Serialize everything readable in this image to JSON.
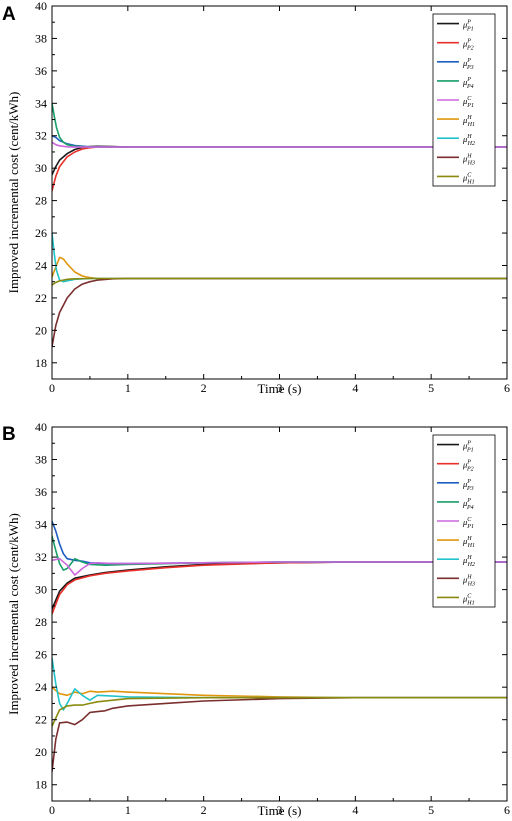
{
  "chart_data": [
    {
      "panel": "A",
      "type": "line",
      "xlabel": "Time (s)",
      "ylabel": "Improved incremental cost (cent/kWh)",
      "xlim": [
        0,
        6
      ],
      "ylim": [
        17,
        40
      ],
      "xticks": [
        0,
        1,
        2,
        3,
        4,
        5,
        6
      ],
      "yticks": [
        18,
        20,
        22,
        24,
        26,
        28,
        30,
        32,
        34,
        36,
        38,
        40
      ],
      "grid": false,
      "legend": "top-right",
      "series": [
        {
          "name": "μP1",
          "base": "μ",
          "sup": "P",
          "sub": "P1",
          "color": "#1a1a1a",
          "x": [
            0,
            0.05,
            0.1,
            0.2,
            0.3,
            0.4,
            0.5,
            0.6,
            0.8,
            1,
            2,
            4,
            6
          ],
          "y": [
            29.6,
            30.1,
            30.5,
            30.9,
            31.15,
            31.28,
            31.33,
            31.35,
            31.33,
            31.3,
            31.3,
            31.3,
            31.3
          ]
        },
        {
          "name": "μP2",
          "base": "μ",
          "sup": "P",
          "sub": "P2",
          "color": "#e8302a",
          "x": [
            0,
            0.05,
            0.1,
            0.2,
            0.3,
            0.4,
            0.5,
            0.6,
            0.8,
            1,
            2,
            4,
            6
          ],
          "y": [
            28.6,
            29.5,
            30.1,
            30.7,
            31.0,
            31.18,
            31.26,
            31.3,
            31.3,
            31.3,
            31.3,
            31.3,
            31.3
          ]
        },
        {
          "name": "μP3",
          "base": "μ",
          "sup": "P",
          "sub": "P3",
          "color": "#1f5fc2",
          "x": [
            0,
            0.05,
            0.1,
            0.2,
            0.3,
            0.5,
            0.8,
            1,
            2,
            4,
            6
          ],
          "y": [
            32.0,
            31.9,
            31.7,
            31.5,
            31.4,
            31.32,
            31.3,
            31.3,
            31.3,
            31.3,
            31.3
          ]
        },
        {
          "name": "μP4",
          "base": "μ",
          "sup": "P",
          "sub": "P4",
          "color": "#1a9e6a",
          "x": [
            0,
            0.03,
            0.06,
            0.1,
            0.15,
            0.2,
            0.3,
            0.5,
            0.8,
            1,
            2,
            4,
            6
          ],
          "y": [
            34.0,
            33.2,
            32.5,
            31.9,
            31.6,
            31.45,
            31.35,
            31.3,
            31.3,
            31.3,
            31.3,
            31.3,
            31.3
          ]
        },
        {
          "name": "μC1",
          "base": "μ",
          "sup": "C",
          "sub": "P1",
          "color": "#cc66dd",
          "x": [
            0,
            0.05,
            0.1,
            0.2,
            0.3,
            0.5,
            0.8,
            1,
            2,
            4,
            6
          ],
          "y": [
            31.6,
            31.45,
            31.38,
            31.32,
            31.3,
            31.3,
            31.3,
            31.3,
            31.3,
            31.3,
            31.3
          ]
        },
        {
          "name": "μH1",
          "base": "μ",
          "sup": "H",
          "sub": "H1",
          "color": "#e0960f",
          "x": [
            0,
            0.05,
            0.1,
            0.15,
            0.2,
            0.3,
            0.4,
            0.5,
            0.6,
            0.8,
            1,
            2,
            4,
            6
          ],
          "y": [
            23.3,
            23.9,
            24.5,
            24.4,
            24.1,
            23.6,
            23.35,
            23.25,
            23.2,
            23.2,
            23.2,
            23.2,
            23.2,
            23.2
          ]
        },
        {
          "name": "μH2",
          "base": "μ",
          "sup": "H",
          "sub": "H2",
          "color": "#22c4cc",
          "x": [
            0,
            0.03,
            0.06,
            0.1,
            0.15,
            0.2,
            0.3,
            0.5,
            0.8,
            1,
            2,
            4,
            6
          ],
          "y": [
            26.0,
            24.7,
            23.7,
            23.1,
            23.0,
            23.05,
            23.15,
            23.2,
            23.2,
            23.2,
            23.2,
            23.2,
            23.2
          ]
        },
        {
          "name": "μH3",
          "base": "μ",
          "sup": "H",
          "sub": "H3",
          "color": "#7a2e2e",
          "x": [
            0,
            0.05,
            0.1,
            0.2,
            0.3,
            0.4,
            0.5,
            0.6,
            0.8,
            1,
            2,
            4,
            6
          ],
          "y": [
            19.0,
            20.3,
            21.1,
            22.0,
            22.55,
            22.85,
            23.0,
            23.1,
            23.18,
            23.2,
            23.2,
            23.2,
            23.2
          ]
        },
        {
          "name": "μC1H",
          "base": "μ",
          "sup": "C",
          "sub": "H1",
          "color": "#8a8a10",
          "x": [
            0,
            0.05,
            0.1,
            0.2,
            0.3,
            0.5,
            0.8,
            1,
            2,
            4,
            6
          ],
          "y": [
            22.8,
            22.95,
            23.05,
            23.15,
            23.18,
            23.2,
            23.2,
            23.2,
            23.2,
            23.2,
            23.2
          ]
        }
      ]
    },
    {
      "panel": "B",
      "type": "line",
      "xlabel": "Time (s)",
      "ylabel": "Improved incremental cost (cent/kWh)",
      "xlim": [
        0,
        6
      ],
      "ylim": [
        17,
        40
      ],
      "xticks": [
        0,
        1,
        2,
        3,
        4,
        5,
        6
      ],
      "yticks": [
        18,
        20,
        22,
        24,
        26,
        28,
        30,
        32,
        34,
        36,
        38,
        40
      ],
      "grid": false,
      "legend": "top-right",
      "series": [
        {
          "name": "μP1",
          "base": "μ",
          "sup": "P",
          "sub": "P1",
          "color": "#1a1a1a",
          "x": [
            0,
            0.1,
            0.2,
            0.3,
            0.5,
            0.7,
            1,
            1.5,
            2,
            3,
            4,
            5,
            6
          ],
          "y": [
            28.8,
            29.9,
            30.4,
            30.7,
            30.9,
            31.05,
            31.2,
            31.4,
            31.55,
            31.65,
            31.7,
            31.7,
            31.7
          ]
        },
        {
          "name": "μP2",
          "base": "μ",
          "sup": "P",
          "sub": "P2",
          "color": "#e8302a",
          "x": [
            0,
            0.1,
            0.2,
            0.3,
            0.5,
            0.7,
            1,
            1.5,
            2,
            3,
            4,
            5,
            6
          ],
          "y": [
            28.5,
            29.7,
            30.3,
            30.6,
            30.85,
            31.0,
            31.15,
            31.35,
            31.5,
            31.65,
            31.7,
            31.7,
            31.7
          ]
        },
        {
          "name": "μP3",
          "base": "μ",
          "sup": "P",
          "sub": "P3",
          "color": "#1f5fc2",
          "x": [
            0,
            0.05,
            0.1,
            0.15,
            0.2,
            0.3,
            0.4,
            0.5,
            0.7,
            1,
            2,
            3,
            6
          ],
          "y": [
            34.2,
            33.6,
            32.8,
            32.2,
            31.9,
            31.8,
            31.75,
            31.65,
            31.6,
            31.6,
            31.65,
            31.7,
            31.7
          ]
        },
        {
          "name": "μP4",
          "base": "μ",
          "sup": "P",
          "sub": "P4",
          "color": "#1a9e6a",
          "x": [
            0,
            0.05,
            0.1,
            0.15,
            0.2,
            0.3,
            0.4,
            0.5,
            0.7,
            1,
            2,
            3,
            6
          ],
          "y": [
            33.3,
            32.4,
            31.6,
            31.2,
            31.3,
            31.9,
            31.7,
            31.55,
            31.5,
            31.55,
            31.65,
            31.7,
            31.7
          ]
        },
        {
          "name": "μC1",
          "base": "μ",
          "sup": "C",
          "sub": "P1",
          "color": "#cc66dd",
          "x": [
            0,
            0.1,
            0.2,
            0.3,
            0.4,
            0.5,
            0.6,
            0.8,
            1,
            2,
            3,
            6
          ],
          "y": [
            31.8,
            31.9,
            31.5,
            30.9,
            31.3,
            31.6,
            31.65,
            31.6,
            31.6,
            31.65,
            31.7,
            31.7
          ]
        },
        {
          "name": "μH1",
          "base": "μ",
          "sup": "H",
          "sub": "H1",
          "color": "#e0960f",
          "x": [
            0,
            0.1,
            0.2,
            0.3,
            0.4,
            0.5,
            0.6,
            0.8,
            1,
            1.5,
            2,
            3,
            4,
            6
          ],
          "y": [
            24.0,
            23.6,
            23.5,
            23.7,
            23.6,
            23.75,
            23.7,
            23.75,
            23.7,
            23.6,
            23.5,
            23.4,
            23.35,
            23.35
          ]
        },
        {
          "name": "μH2",
          "base": "μ",
          "sup": "H",
          "sub": "H2",
          "color": "#22c4cc",
          "x": [
            0,
            0.05,
            0.1,
            0.15,
            0.2,
            0.3,
            0.4,
            0.5,
            0.6,
            0.8,
            1,
            2,
            3,
            6
          ],
          "y": [
            25.8,
            24.2,
            23.0,
            22.6,
            23.0,
            23.9,
            23.5,
            23.2,
            23.5,
            23.45,
            23.4,
            23.35,
            23.35,
            23.35
          ]
        },
        {
          "name": "μH3",
          "base": "μ",
          "sup": "H",
          "sub": "H3",
          "color": "#7a2e2e",
          "x": [
            0,
            0.05,
            0.1,
            0.2,
            0.3,
            0.4,
            0.5,
            0.6,
            0.7,
            0.8,
            1,
            1.5,
            2,
            3,
            4,
            6
          ],
          "y": [
            18.8,
            20.8,
            21.8,
            21.85,
            21.7,
            22.0,
            22.45,
            22.5,
            22.55,
            22.7,
            22.85,
            23.0,
            23.15,
            23.3,
            23.35,
            23.35
          ]
        },
        {
          "name": "μC1H",
          "base": "μ",
          "sup": "C",
          "sub": "H1",
          "color": "#8a8a10",
          "x": [
            0,
            0.1,
            0.2,
            0.3,
            0.4,
            0.5,
            0.6,
            0.8,
            1,
            2,
            3,
            6
          ],
          "y": [
            21.6,
            22.6,
            22.85,
            22.9,
            22.9,
            23.0,
            23.1,
            23.2,
            23.3,
            23.35,
            23.35,
            23.35
          ]
        }
      ]
    }
  ]
}
